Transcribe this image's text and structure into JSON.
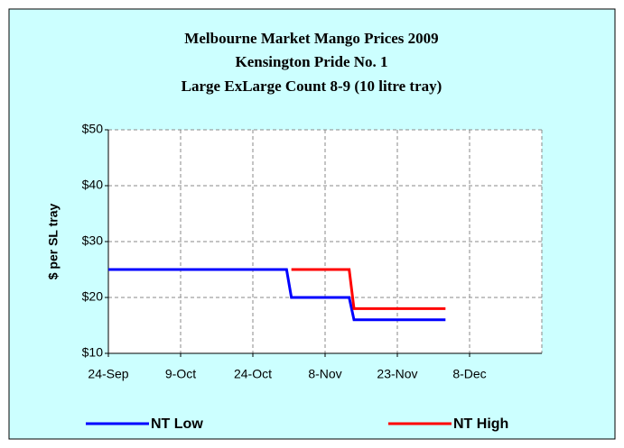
{
  "chart_data": {
    "type": "line",
    "title": [
      "Melbourne Market Mango Prices 2009",
      "Kensington Pride No. 1",
      "Large ExLarge Count 8-9 (10 litre tray)"
    ],
    "y_label": "$ per SL tray",
    "xlim": [
      "2009-09-24",
      "2009-12-23"
    ],
    "xticks": [
      {
        "value": "2009-09-24",
        "label": "24-Sep"
      },
      {
        "value": "2009-10-09",
        "label": "9-Oct"
      },
      {
        "value": "2009-10-24",
        "label": "24-Oct"
      },
      {
        "value": "2009-11-08",
        "label": "8-Nov"
      },
      {
        "value": "2009-11-23",
        "label": "23-Nov"
      },
      {
        "value": "2009-12-08",
        "label": "8-Dec"
      }
    ],
    "ylim": [
      10,
      50
    ],
    "yticks": [
      {
        "value": 10,
        "label": "$10"
      },
      {
        "value": 20,
        "label": "$20"
      },
      {
        "value": 30,
        "label": "$30"
      },
      {
        "value": 40,
        "label": "$40"
      },
      {
        "value": 50,
        "label": "$50"
      }
    ],
    "grid": true,
    "legend": "bottom",
    "series": [
      {
        "name": "NT Low",
        "color": "#0000ff",
        "x": [
          "2009-09-24",
          "2009-10-31",
          "2009-11-01",
          "2009-11-13",
          "2009-11-14",
          "2009-12-03"
        ],
        "values": [
          25,
          25,
          20,
          20,
          16,
          16
        ]
      },
      {
        "name": "NT High",
        "color": "#ff0000",
        "x": [
          "2009-11-01",
          "2009-11-13",
          "2009-11-14",
          "2009-12-03"
        ],
        "values": [
          25,
          25,
          18,
          18
        ]
      }
    ]
  }
}
